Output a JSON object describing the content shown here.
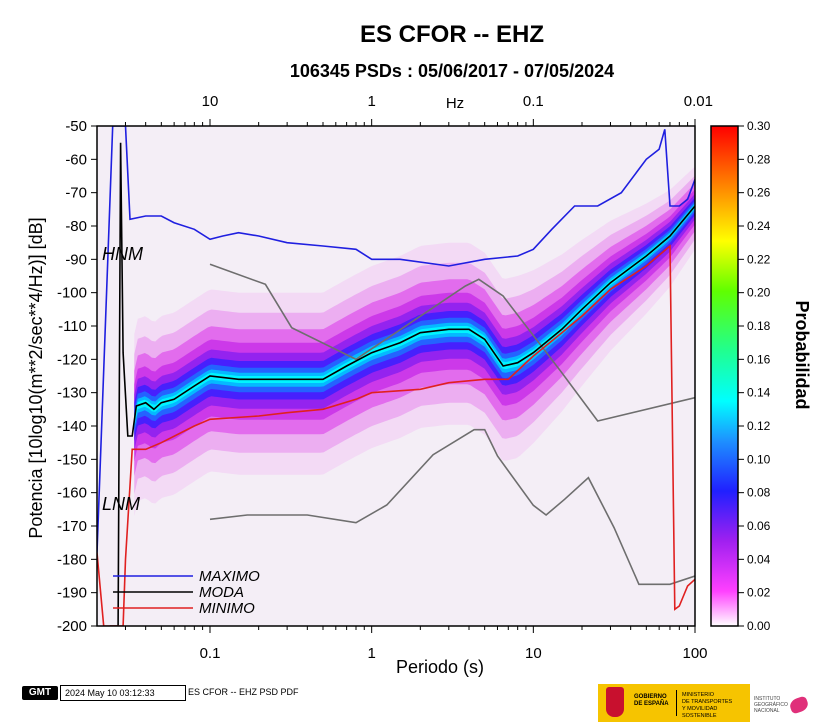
{
  "chart_data": {
    "type": "heatmap",
    "title": "ES CFOR -- EHZ",
    "subtitle": "106345 PSDs : 05/06/2017 - 07/05/2024",
    "xlabel": "Periodo (s)",
    "ylabel": "Potencia [10log10(m**2/sec**4/Hz)] [dB]",
    "top_axis_label": "Hz",
    "x_scale": "log",
    "xlim": [
      0.02,
      100
    ],
    "ylim": [
      -200,
      -50
    ],
    "x_ticks": [
      "0.1",
      "1",
      "10",
      "100"
    ],
    "top_ticks": [
      "10",
      "1",
      "0.1",
      "0.01"
    ],
    "top_tick_periods": [
      0.1,
      1,
      10,
      100
    ],
    "y_ticks": [
      -50,
      -60,
      -70,
      -80,
      -90,
      -100,
      -110,
      -120,
      -130,
      -140,
      -150,
      -160,
      -170,
      -180,
      -190,
      -200
    ],
    "colorbar": {
      "label": "Probabilidad",
      "range": [
        0.0,
        0.3
      ],
      "ticks": [
        "0.00",
        "0.02",
        "0.04",
        "0.06",
        "0.08",
        "0.10",
        "0.12",
        "0.14",
        "0.16",
        "0.18",
        "0.20",
        "0.22",
        "0.24",
        "0.26",
        "0.28",
        "0.30"
      ]
    },
    "model_labels": {
      "hnm": "HNM",
      "lnm": "LNM"
    },
    "hnm": {
      "x": [
        0.1,
        0.22,
        0.32,
        0.8,
        3.8,
        4.6,
        6.5,
        15,
        25,
        100
      ],
      "y": [
        -91.5,
        -97.5,
        -110.5,
        -120,
        -98,
        -96,
        -101,
        -124,
        -138.5,
        -131.5
      ]
    },
    "lnm": {
      "x": [
        0.1,
        0.17,
        0.4,
        0.8,
        1.24,
        2.4,
        4.3,
        5.0,
        6.0,
        10,
        12,
        15.6,
        21.9,
        31.6,
        45,
        70,
        100
      ],
      "y": [
        -168,
        -166.7,
        -166.7,
        -169,
        -163.7,
        -148.6,
        -141.1,
        -141.1,
        -149,
        -163.8,
        -166.7,
        -162,
        -155.5,
        -170.5,
        -187.5,
        -187.5,
        -185
      ]
    },
    "series": [
      {
        "name": "MAXIMO",
        "color": "#1f1fe0",
        "x": [
          0.02,
          0.025,
          0.026,
          0.028,
          0.03,
          0.032,
          0.04,
          0.05,
          0.06,
          0.08,
          0.1,
          0.12,
          0.15,
          0.2,
          0.3,
          0.5,
          0.8,
          1.0,
          1.5,
          3.0,
          5.0,
          8.0,
          10.0,
          13.0,
          18.0,
          25.0,
          35.0,
          50.0,
          60.0,
          65.0,
          70.0,
          80.0,
          90.0,
          100.0
        ],
        "y": [
          -178,
          -50,
          -50,
          -50,
          -50,
          -78,
          -77,
          -77,
          -79,
          -81,
          -84,
          -83,
          -82,
          -83,
          -85,
          -86,
          -87,
          -90,
          -90,
          -92,
          -90,
          -89,
          -87,
          -81,
          -74,
          -74,
          -70,
          -60,
          -57,
          -51,
          -74,
          -74,
          -72,
          -66
        ]
      },
      {
        "name": "MODA",
        "color": "#000000",
        "x": [
          0.024,
          0.027,
          0.028,
          0.029,
          0.031,
          0.033,
          0.035,
          0.04,
          0.045,
          0.05,
          0.06,
          0.08,
          0.1,
          0.15,
          0.2,
          0.3,
          0.5,
          0.7,
          1.0,
          1.5,
          2.0,
          3.0,
          4.0,
          5.0,
          6.5,
          8.0,
          10.0,
          15.0,
          20.0,
          30.0,
          50.0,
          70.0,
          100.0
        ],
        "y": [
          -200,
          -200,
          -55,
          -118,
          -143,
          -143,
          -134,
          -133,
          -135,
          -133,
          -132,
          -128,
          -125,
          -126,
          -126,
          -126,
          -126,
          -122,
          -118,
          -115,
          -112,
          -111,
          -111,
          -114,
          -122,
          -121,
          -118,
          -111,
          -105,
          -97,
          -89,
          -83,
          -74
        ]
      },
      {
        "name": "MINIMO",
        "color": "#e02020",
        "x": [
          0.02,
          0.022,
          0.024,
          0.027,
          0.029,
          0.03,
          0.033,
          0.04,
          0.05,
          0.08,
          0.1,
          0.2,
          0.3,
          0.5,
          0.8,
          1.0,
          2.0,
          3.0,
          5.0,
          7.0,
          10.0,
          15.0,
          20.0,
          30.0,
          50.0,
          70.0,
          75.0,
          80.0,
          90.0,
          100.0
        ],
        "y": [
          -178,
          -200,
          -200,
          -200,
          -200,
          -180,
          -147,
          -147,
          -145,
          -140,
          -138,
          -137,
          -136,
          -135,
          -132,
          -130,
          -129,
          -127,
          -126,
          -126,
          -119,
          -112,
          -107,
          -99,
          -92,
          -86,
          -195,
          -194,
          -188,
          -186
        ]
      }
    ]
  },
  "footer": {
    "logo_text": "GMT",
    "timestamp": "2024 May 10 03:12:33",
    "caption": "ES CFOR -- EHZ PSD PDF",
    "gov_line1": "GOBIERNO",
    "gov_line2": "DE ESPAÑA",
    "ministry_line1": "MINISTERIO",
    "ministry_line2": "DE TRANSPORTES",
    "ministry_line3": "Y MOVILIDAD SOSTENIBLE",
    "ign_line1": "INSTITUTO",
    "ign_line2": "GEOGRÁFICO",
    "ign_line3": "NACIONAL"
  }
}
